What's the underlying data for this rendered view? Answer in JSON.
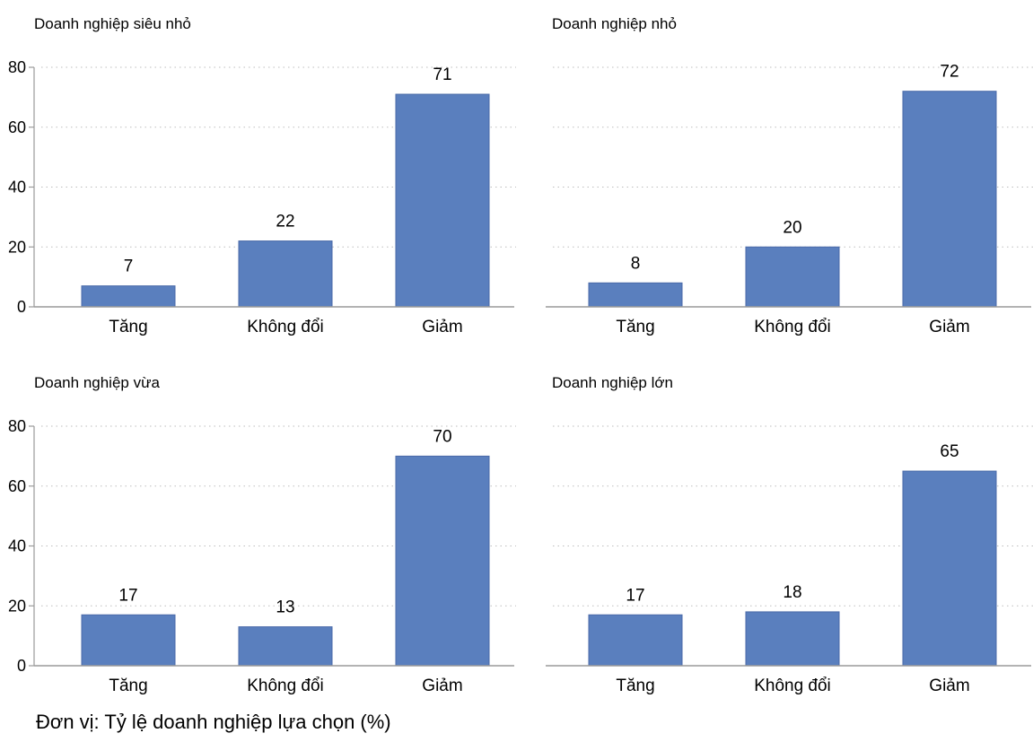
{
  "footnote": "Đơn vị: Tỷ lệ doanh nghiệp lựa chọn (%)",
  "colors": {
    "bar": "#5a7fbe",
    "bar_edge": "#4a6aa8",
    "grid": "#bdbdbd",
    "axis": "#9a9a9a"
  },
  "chart_data": [
    {
      "type": "bar",
      "title": "Doanh nghiệp siêu nhỏ",
      "categories": [
        "Tăng",
        "Không đổi",
        "Giảm"
      ],
      "values": [
        7,
        22,
        71
      ],
      "ylim": [
        0,
        80
      ],
      "yticks": [
        0,
        20,
        40,
        60,
        80
      ],
      "grid": true
    },
    {
      "type": "bar",
      "title": "Doanh nghiệp nhỏ",
      "categories": [
        "Tăng",
        "Không đổi",
        "Giảm"
      ],
      "values": [
        8,
        20,
        72
      ],
      "ylim": [
        0,
        80
      ],
      "yticks": [
        0,
        20,
        40,
        60,
        80
      ],
      "grid": true
    },
    {
      "type": "bar",
      "title": "Doanh nghiệp vừa",
      "categories": [
        "Tăng",
        "Không đổi",
        "Giảm"
      ],
      "values": [
        17,
        13,
        70
      ],
      "ylim": [
        0,
        80
      ],
      "yticks": [
        0,
        20,
        40,
        60,
        80
      ],
      "grid": true
    },
    {
      "type": "bar",
      "title": "Doanh nghiệp lớn",
      "categories": [
        "Tăng",
        "Không đổi",
        "Giảm"
      ],
      "values": [
        17,
        18,
        65
      ],
      "ylim": [
        0,
        80
      ],
      "yticks": [
        0,
        20,
        40,
        60,
        80
      ],
      "grid": true
    }
  ]
}
